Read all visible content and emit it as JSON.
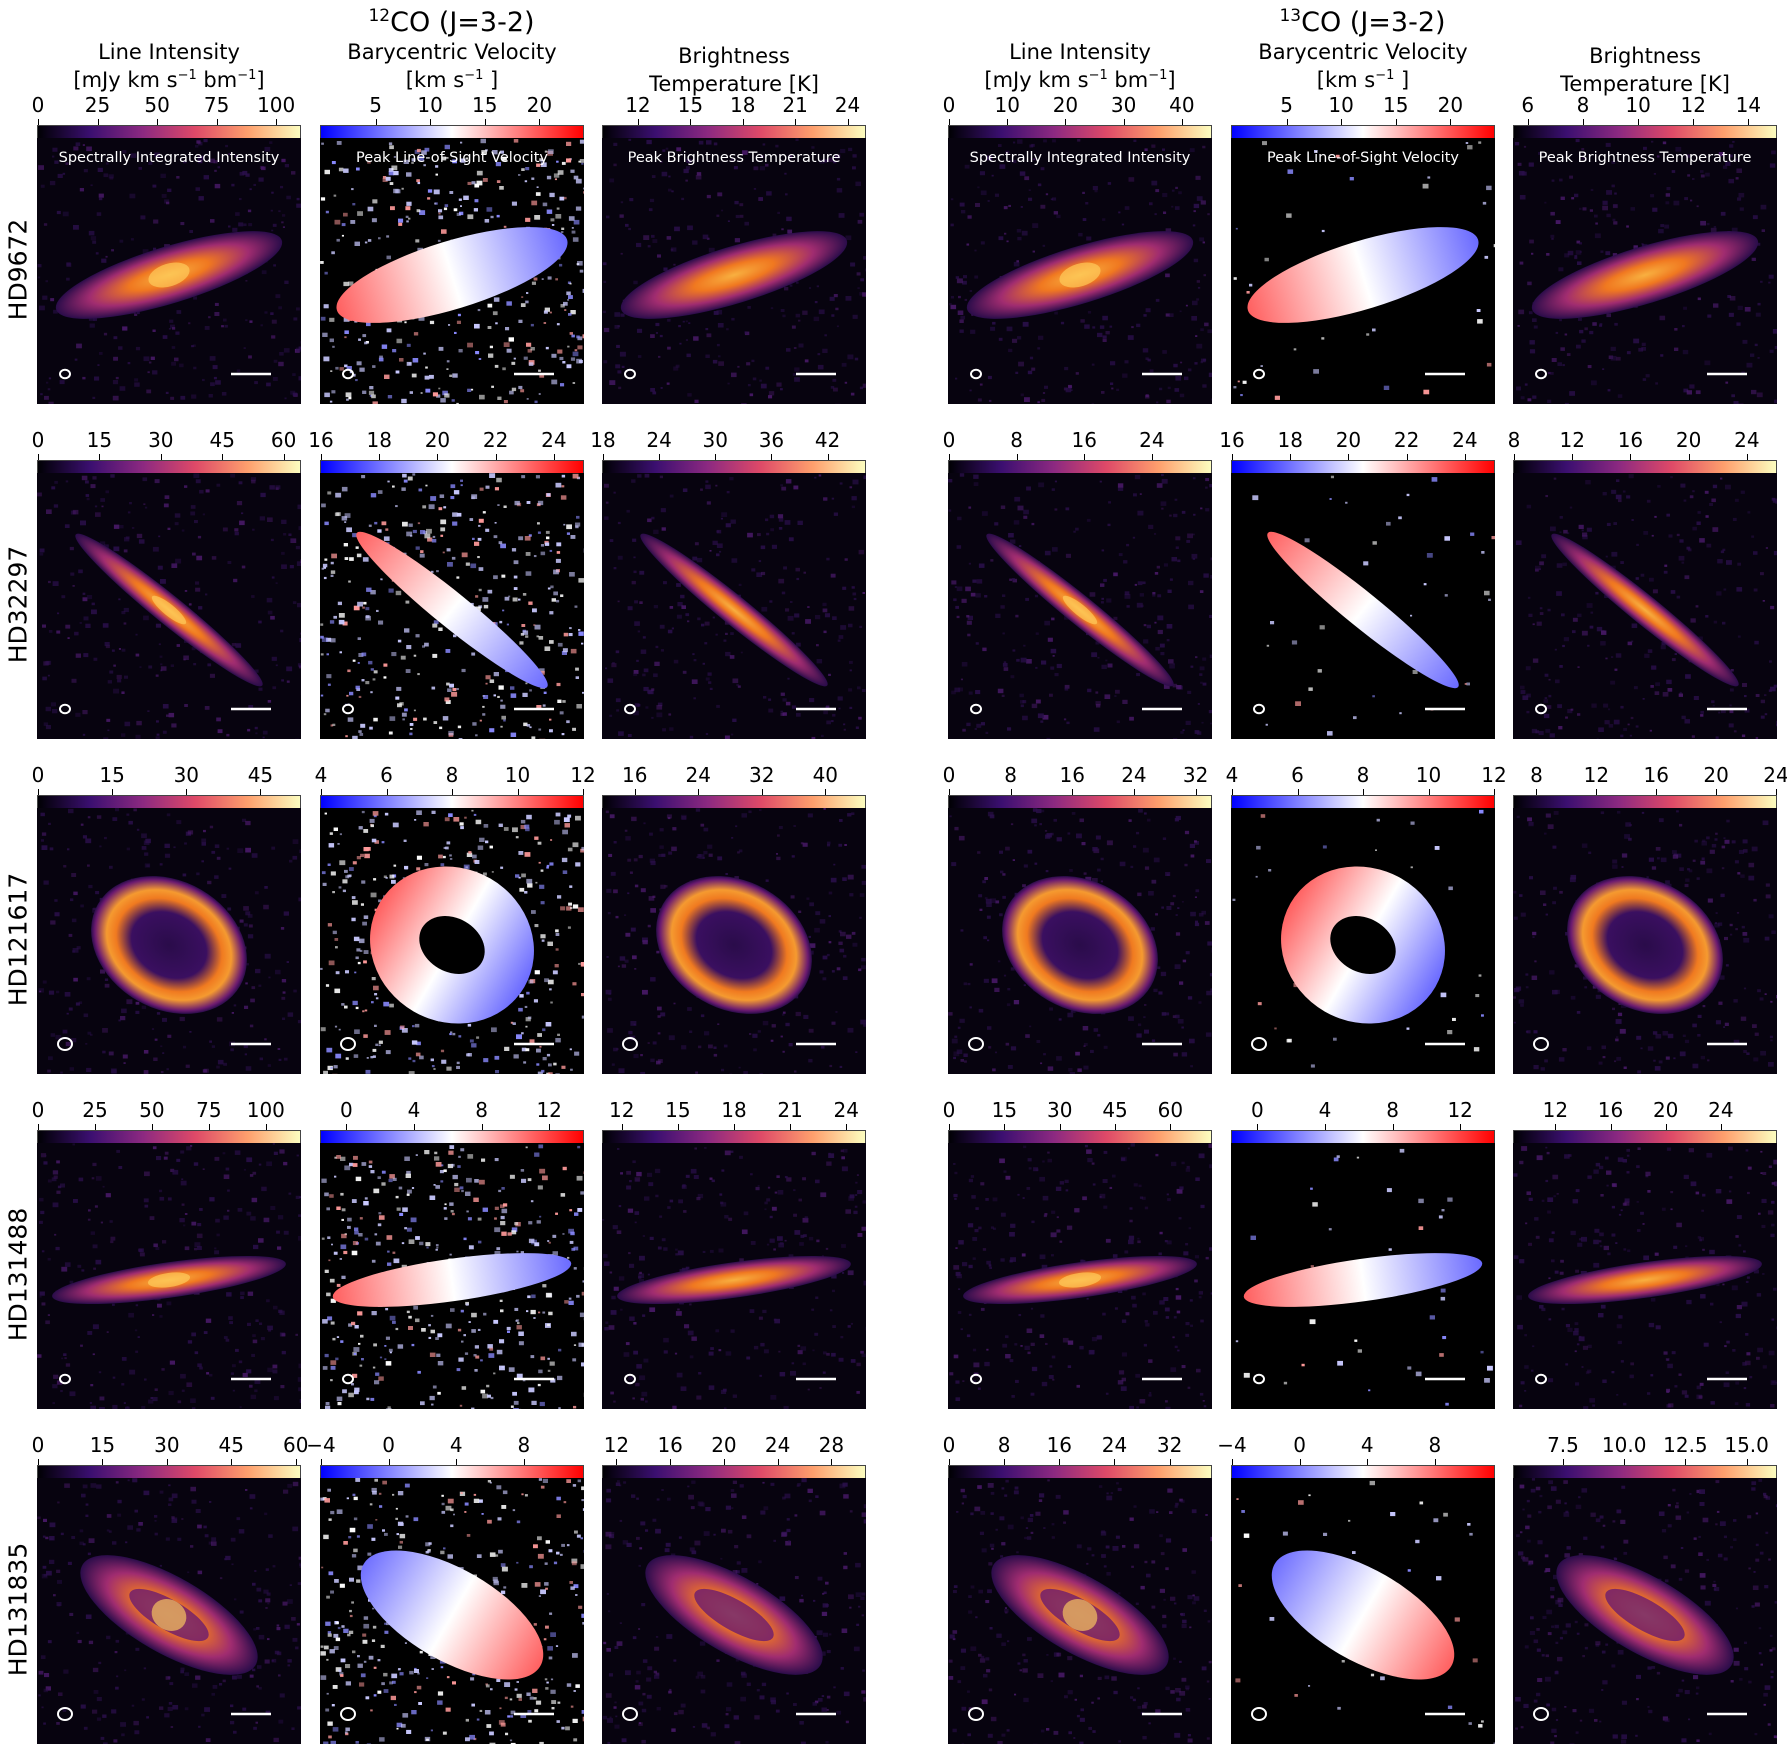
{
  "figure": {
    "groups": [
      {
        "id": "co12",
        "title_sup": "12",
        "title": "CO (J=3-2)"
      },
      {
        "id": "co13",
        "title_sup": "13",
        "title": "CO (J=3-2)"
      }
    ],
    "columns": [
      {
        "group": "co12",
        "kind": "intensity",
        "header_line1": "Line Intensity",
        "header_line2_pre": "[mJy km s",
        "header_line2_sup": "−1",
        "header_line2_mid": " bm",
        "header_line2_sup2": "−1",
        "header_line2_post": "]",
        "panel_title": "Spectrally Integrated Intensity",
        "colormap": "inferno",
        "colors": [
          "#000004",
          "#3b0f70",
          "#8c2981",
          "#de4968",
          "#fe9f6d",
          "#fcfdbf"
        ]
      },
      {
        "group": "co12",
        "kind": "velocity",
        "header_line1": "Barycentric Velocity",
        "header_line2_pre": "[km s",
        "header_line2_sup": "−1",
        "header_line2_mid": "",
        "header_line2_sup2": "",
        "header_line2_post": " ]",
        "panel_title": "Peak Line-of-Sight Velocity",
        "colormap": "bwr",
        "colors": [
          "#0000ff",
          "#ffffff",
          "#ff0000"
        ]
      },
      {
        "group": "co12",
        "kind": "temperature",
        "header_line1": "Brightness",
        "header_line2_pre": "Temperature [K]",
        "header_line2_sup": "",
        "header_line2_mid": "",
        "header_line2_sup2": "",
        "header_line2_post": "",
        "panel_title": "Peak Brightness Temperature",
        "colormap": "inferno",
        "colors": [
          "#000004",
          "#3b0f70",
          "#8c2981",
          "#de4968",
          "#fe9f6d",
          "#fcfdbf"
        ]
      },
      {
        "group": "co13",
        "kind": "intensity",
        "header_line1": "Line Intensity",
        "header_line2_pre": "[mJy km s",
        "header_line2_sup": "−1",
        "header_line2_mid": " bm",
        "header_line2_sup2": "−1",
        "header_line2_post": "]",
        "panel_title": "Spectrally Integrated Intensity",
        "colormap": "inferno",
        "colors": [
          "#000004",
          "#3b0f70",
          "#8c2981",
          "#de4968",
          "#fe9f6d",
          "#fcfdbf"
        ]
      },
      {
        "group": "co13",
        "kind": "velocity",
        "header_line1": "Barycentric Velocity",
        "header_line2_pre": "[km s",
        "header_line2_sup": "−1",
        "header_line2_mid": "",
        "header_line2_sup2": "",
        "header_line2_post": " ]",
        "panel_title": "Peak Line-of-Sight Velocity",
        "colormap": "bwr",
        "colors": [
          "#0000ff",
          "#ffffff",
          "#ff0000"
        ]
      },
      {
        "group": "co13",
        "kind": "temperature",
        "header_line1": "Brightness",
        "header_line2_pre": "Temperature [K]",
        "header_line2_sup": "",
        "header_line2_mid": "",
        "header_line2_sup2": "",
        "header_line2_post": "",
        "panel_title": "Peak Brightness Temperature",
        "colormap": "inferno",
        "colors": [
          "#000004",
          "#3b0f70",
          "#8c2981",
          "#de4968",
          "#fe9f6d",
          "#fcfdbf"
        ]
      }
    ],
    "rows": [
      {
        "name": "HD9672",
        "shape": "edge-ring",
        "inclination_deg": -17,
        "aspect": 0.24,
        "colorbars": [
          {
            "min": 0,
            "max": 110,
            "ticks": [
              "0",
              "25",
              "50",
              "75",
              "100"
            ],
            "tickvals": [
              0,
              25,
              50,
              75,
              100
            ]
          },
          {
            "min": 0,
            "max": 24,
            "ticks": [
              "5",
              "10",
              "15",
              "20"
            ],
            "tickvals": [
              5,
              10,
              15,
              20
            ]
          },
          {
            "min": 10,
            "max": 25,
            "ticks": [
              "12",
              "15",
              "18",
              "21",
              "24"
            ],
            "tickvals": [
              12,
              15,
              18,
              21,
              24
            ]
          },
          {
            "min": 0,
            "max": 45,
            "ticks": [
              "0",
              "10",
              "20",
              "30",
              "40"
            ],
            "tickvals": [
              0,
              10,
              20,
              30,
              40
            ]
          },
          {
            "min": 0,
            "max": 24,
            "ticks": [
              "5",
              "10",
              "15",
              "20"
            ],
            "tickvals": [
              5,
              10,
              15,
              20
            ]
          },
          {
            "min": 5.5,
            "max": 15,
            "ticks": [
              "6",
              "8",
              "10",
              "12",
              "14"
            ],
            "tickvals": [
              6,
              8,
              10,
              12,
              14
            ]
          }
        ]
      },
      {
        "name": "HD32297",
        "shape": "edge-thin",
        "inclination_deg": 39,
        "aspect": 0.12,
        "colorbars": [
          {
            "min": 0,
            "max": 64,
            "ticks": [
              "0",
              "15",
              "30",
              "45",
              "60"
            ],
            "tickvals": [
              0,
              15,
              30,
              45,
              60
            ]
          },
          {
            "min": 16,
            "max": 25,
            "ticks": [
              "16",
              "18",
              "20",
              "22",
              "24"
            ],
            "tickvals": [
              16,
              18,
              20,
              22,
              24
            ]
          },
          {
            "min": 18,
            "max": 46,
            "ticks": [
              "18",
              "24",
              "30",
              "36",
              "42"
            ],
            "tickvals": [
              18,
              24,
              30,
              36,
              42
            ]
          },
          {
            "min": 0,
            "max": 31,
            "ticks": [
              "0",
              "8",
              "16",
              "24"
            ],
            "tickvals": [
              0,
              8,
              16,
              24
            ]
          },
          {
            "min": 16,
            "max": 25,
            "ticks": [
              "16",
              "18",
              "20",
              "22",
              "24"
            ],
            "tickvals": [
              16,
              18,
              20,
              22,
              24
            ]
          },
          {
            "min": 8,
            "max": 26,
            "ticks": [
              "8",
              "12",
              "16",
              "20",
              "24"
            ],
            "tickvals": [
              8,
              12,
              16,
              20,
              24
            ]
          }
        ]
      },
      {
        "name": "HD121617",
        "shape": "ring",
        "inclination_deg": 30,
        "aspect": 0.78,
        "colorbars": [
          {
            "min": 0,
            "max": 53,
            "ticks": [
              "0",
              "15",
              "30",
              "45"
            ],
            "tickvals": [
              0,
              15,
              30,
              45
            ]
          },
          {
            "min": 4,
            "max": 12,
            "ticks": [
              "4",
              "6",
              "8",
              "10",
              "12"
            ],
            "tickvals": [
              4,
              6,
              8,
              10,
              12
            ]
          },
          {
            "min": 12,
            "max": 45,
            "ticks": [
              "16",
              "24",
              "32",
              "40"
            ],
            "tickvals": [
              16,
              24,
              32,
              40
            ]
          },
          {
            "min": 0,
            "max": 34,
            "ticks": [
              "0",
              "8",
              "16",
              "24",
              "32"
            ],
            "tickvals": [
              0,
              8,
              16,
              24,
              32
            ]
          },
          {
            "min": 4,
            "max": 12,
            "ticks": [
              "4",
              "6",
              "8",
              "10",
              "12"
            ],
            "tickvals": [
              4,
              6,
              8,
              10,
              12
            ]
          },
          {
            "min": 6.5,
            "max": 24,
            "ticks": [
              "8",
              "12",
              "16",
              "20",
              "24"
            ],
            "tickvals": [
              8,
              12,
              16,
              20,
              24
            ]
          }
        ]
      },
      {
        "name": "HD131488",
        "shape": "edge-flat",
        "inclination_deg": -8,
        "aspect": 0.15,
        "colorbars": [
          {
            "min": 0,
            "max": 115,
            "ticks": [
              "0",
              "25",
              "50",
              "75",
              "100"
            ],
            "tickvals": [
              0,
              25,
              50,
              75,
              100
            ]
          },
          {
            "min": -1.5,
            "max": 14,
            "ticks": [
              "0",
              "4",
              "8",
              "12"
            ],
            "tickvals": [
              0,
              4,
              8,
              12
            ]
          },
          {
            "min": 11,
            "max": 25,
            "ticks": [
              "12",
              "15",
              "18",
              "21",
              "24"
            ],
            "tickvals": [
              12,
              15,
              18,
              21,
              24
            ]
          },
          {
            "min": 0,
            "max": 71,
            "ticks": [
              "0",
              "15",
              "30",
              "45",
              "60"
            ],
            "tickvals": [
              0,
              15,
              30,
              45,
              60
            ]
          },
          {
            "min": -1.5,
            "max": 14,
            "ticks": [
              "0",
              "4",
              "8",
              "12"
            ],
            "tickvals": [
              0,
              4,
              8,
              12
            ]
          },
          {
            "min": 9,
            "max": 28,
            "ticks": [
              "12",
              "16",
              "20",
              "24"
            ],
            "tickvals": [
              12,
              16,
              20,
              24
            ]
          }
        ]
      },
      {
        "name": "HD131835",
        "shape": "ring-incl",
        "inclination_deg": 30,
        "aspect": 0.38,
        "colorbars": [
          {
            "min": 0,
            "max": 61,
            "ticks": [
              "0",
              "15",
              "30",
              "45",
              "60"
            ],
            "tickvals": [
              0,
              15,
              30,
              45,
              60
            ]
          },
          {
            "min": -4,
            "max": 11.5,
            "ticks": [
              "−4",
              "0",
              "4",
              "8"
            ],
            "tickvals": [
              -4,
              0,
              4,
              8
            ]
          },
          {
            "min": 11,
            "max": 30.5,
            "ticks": [
              "12",
              "16",
              "20",
              "24",
              "28"
            ],
            "tickvals": [
              12,
              16,
              20,
              24,
              28
            ]
          },
          {
            "min": 0,
            "max": 38,
            "ticks": [
              "0",
              "8",
              "16",
              "24",
              "32"
            ],
            "tickvals": [
              0,
              8,
              16,
              24,
              32
            ]
          },
          {
            "min": -4,
            "max": 11.5,
            "ticks": [
              "−4",
              "0",
              "4",
              "8"
            ],
            "tickvals": [
              -4,
              0,
              4,
              8
            ]
          },
          {
            "min": 5.5,
            "max": 16.2,
            "ticks": [
              "7.5",
              "10.0",
              "12.5",
              "15.0"
            ],
            "tickvals": [
              7.5,
              10,
              12.5,
              15
            ]
          }
        ]
      }
    ],
    "colors": {
      "panel_bg": "#07030f",
      "beam": "#ffffff",
      "scalebar": "#ffffff"
    }
  }
}
